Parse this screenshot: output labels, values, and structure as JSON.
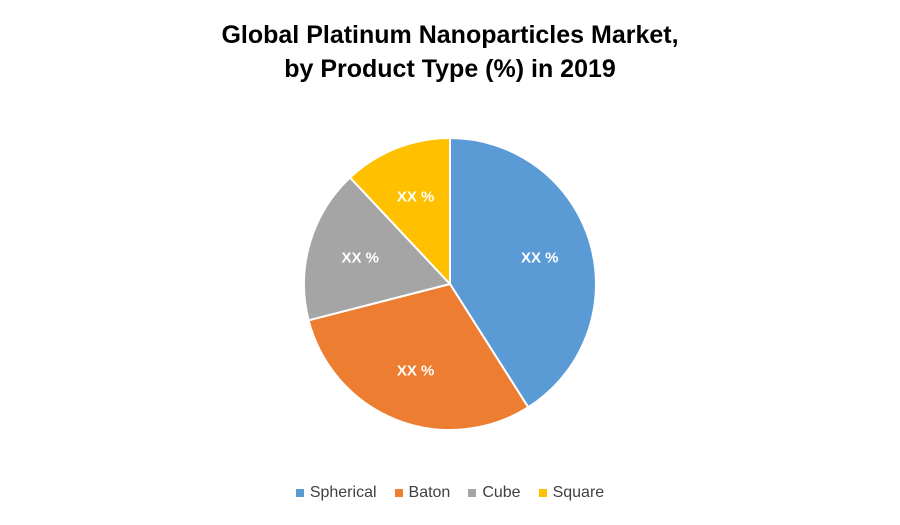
{
  "chart_data": {
    "type": "pie",
    "title": "Global Platinum Nanoparticles Market, by Product Type (%) in 2019",
    "title_lines": [
      "Global Platinum Nanoparticles Market,",
      "by Product Type (%) in 2019"
    ],
    "categories": [
      "Spherical",
      "Baton",
      "Cube",
      "Square"
    ],
    "values": [
      41,
      30,
      17,
      12
    ],
    "data_labels": [
      "XX %",
      "XX %",
      "XX %",
      "XX %"
    ],
    "colors": [
      "#5B9BD5",
      "#ED7D31",
      "#A5A5A5",
      "#FFC000"
    ],
    "legend_position": "bottom",
    "start_angle_deg": 0,
    "direction": "clockwise"
  }
}
